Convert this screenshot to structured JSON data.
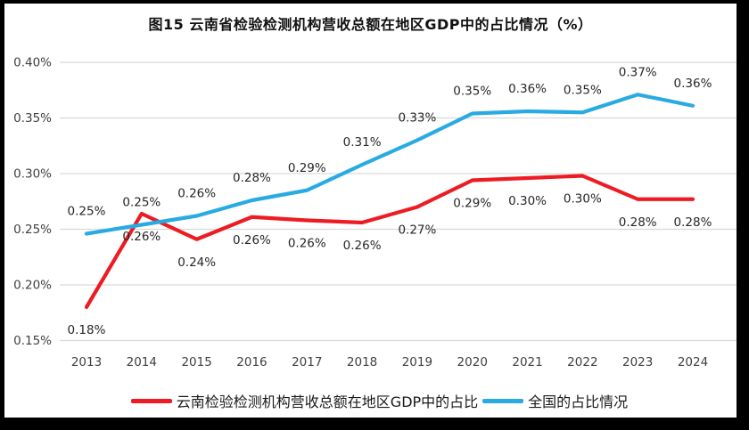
{
  "chart_data": {
    "type": "line",
    "title": "图15 云南省检验检测机构营收总额在地区GDP中的占比情况（%）",
    "categories": [
      "2013",
      "2014",
      "2015",
      "2016",
      "2017",
      "2018",
      "2019",
      "2020",
      "2021",
      "2022",
      "2023",
      "2024"
    ],
    "series": [
      {
        "name": "云南检验检测机构营收总额在地区GDP中的占比",
        "color": "#ED1C24",
        "values": [
          0.18,
          0.26,
          0.24,
          0.26,
          0.26,
          0.26,
          0.27,
          0.29,
          0.3,
          0.3,
          0.28,
          0.28
        ],
        "plotted": [
          0.18,
          0.264,
          0.241,
          0.261,
          0.258,
          0.256,
          0.27,
          0.294,
          0.296,
          0.298,
          0.277,
          0.277
        ],
        "label_position": "below"
      },
      {
        "name": "全国的占比情况",
        "color": "#29ABE2",
        "values": [
          0.25,
          0.25,
          0.26,
          0.28,
          0.29,
          0.31,
          0.33,
          0.35,
          0.36,
          0.35,
          0.37,
          0.36
        ],
        "plotted": [
          0.246,
          0.254,
          0.262,
          0.276,
          0.285,
          0.308,
          0.33,
          0.354,
          0.356,
          0.355,
          0.371,
          0.361
        ],
        "label_position": "above"
      }
    ],
    "yticks": [
      0.4,
      0.35,
      0.3,
      0.25,
      0.2,
      0.15
    ],
    "ylim": [
      0.15,
      0.4
    ],
    "ytick_suffix": "%",
    "value_decimals": 2,
    "grid": true,
    "legend_position": "bottom",
    "gridline_color": "#d9d9d9",
    "axis_label_color": "#404040",
    "data_label_color": "#262626",
    "background_color": "#ffffff",
    "frame_color": "#000000"
  }
}
